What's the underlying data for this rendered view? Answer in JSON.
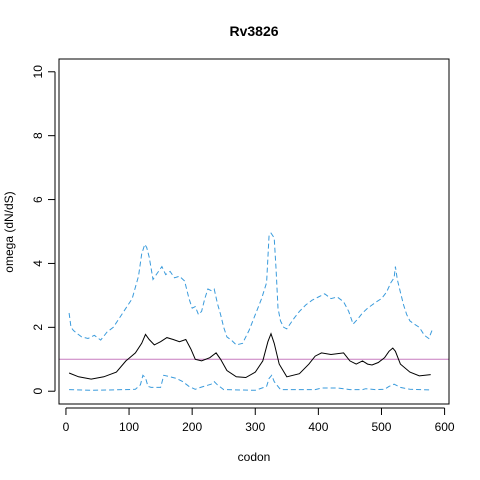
{
  "chart_data": {
    "type": "line",
    "title": "Rv3826",
    "xlabel": "codon",
    "ylabel": "omega (dN/dS)",
    "xlim": [
      -11,
      607
    ],
    "ylim": [
      -0.4,
      10.4
    ],
    "x_ticks": [
      0,
      100,
      200,
      300,
      400,
      500,
      600
    ],
    "y_ticks": [
      0,
      2,
      4,
      6,
      8,
      10
    ],
    "grid": false,
    "reference_line": {
      "y": 1,
      "color": "#C77CBF"
    },
    "colors": {
      "estimate": "#000000",
      "ci": "#3A9BDC"
    },
    "series": [
      {
        "role": "estimate",
        "style": "solid",
        "x": [
          5,
          20,
          40,
          60,
          80,
          95,
          110,
          120,
          126,
          132,
          140,
          150,
          160,
          170,
          180,
          190,
          198,
          205,
          215,
          228,
          238,
          245,
          255,
          270,
          285,
          300,
          312,
          320,
          325,
          330,
          338,
          350,
          370,
          385,
          395,
          405,
          420,
          440,
          450,
          460,
          470,
          478,
          485,
          495,
          505,
          512,
          518,
          522,
          530,
          545,
          560,
          578
        ],
        "y": [
          0.57,
          0.45,
          0.38,
          0.45,
          0.6,
          0.95,
          1.2,
          1.5,
          1.78,
          1.62,
          1.45,
          1.55,
          1.68,
          1.62,
          1.55,
          1.62,
          1.32,
          1.0,
          0.95,
          1.05,
          1.2,
          1.0,
          0.65,
          0.45,
          0.43,
          0.6,
          0.95,
          1.55,
          1.8,
          1.5,
          0.85,
          0.45,
          0.55,
          0.85,
          1.1,
          1.2,
          1.15,
          1.2,
          0.95,
          0.85,
          0.95,
          0.85,
          0.82,
          0.9,
          1.05,
          1.25,
          1.35,
          1.25,
          0.85,
          0.6,
          0.48,
          0.52
        ]
      },
      {
        "role": "upper-ci",
        "style": "dashed",
        "x": [
          5,
          8,
          12,
          18,
          25,
          35,
          45,
          55,
          65,
          75,
          85,
          95,
          105,
          115,
          120,
          125,
          128,
          132,
          138,
          145,
          152,
          158,
          165,
          172,
          180,
          188,
          195,
          200,
          205,
          210,
          215,
          220,
          225,
          230,
          235,
          240,
          245,
          250,
          255,
          262,
          270,
          280,
          290,
          300,
          310,
          318,
          322,
          325,
          330,
          333,
          336,
          340,
          345,
          350,
          355,
          362,
          370,
          380,
          390,
          400,
          410,
          420,
          430,
          440,
          448,
          455,
          462,
          470,
          478,
          485,
          492,
          500,
          508,
          515,
          520,
          522,
          525,
          530,
          535,
          540,
          545,
          552,
          560,
          568,
          575,
          580
        ],
        "y": [
          2.45,
          2.0,
          1.9,
          1.8,
          1.7,
          1.65,
          1.75,
          1.6,
          1.85,
          2.0,
          2.3,
          2.6,
          2.9,
          3.6,
          4.3,
          4.6,
          4.5,
          4.2,
          3.5,
          3.7,
          3.9,
          3.65,
          3.75,
          3.55,
          3.6,
          3.45,
          2.9,
          2.6,
          2.65,
          2.4,
          2.5,
          2.9,
          3.2,
          3.15,
          3.2,
          2.75,
          2.4,
          2.0,
          1.7,
          1.6,
          1.45,
          1.5,
          1.9,
          2.4,
          2.9,
          3.4,
          4.9,
          4.95,
          4.8,
          3.8,
          2.6,
          2.2,
          2.0,
          1.95,
          2.1,
          2.3,
          2.5,
          2.7,
          2.85,
          2.95,
          3.05,
          2.9,
          2.95,
          2.8,
          2.5,
          2.1,
          2.25,
          2.45,
          2.6,
          2.7,
          2.8,
          2.9,
          3.1,
          3.4,
          3.55,
          3.9,
          3.5,
          3.1,
          2.7,
          2.4,
          2.2,
          2.1,
          2.0,
          1.75,
          1.65,
          1.9
        ]
      },
      {
        "role": "lower-ci",
        "style": "dashed",
        "x": [
          5,
          40,
          95,
          110,
          118,
          122,
          126,
          130,
          135,
          150,
          155,
          165,
          175,
          185,
          195,
          205,
          210,
          230,
          235,
          240,
          250,
          300,
          318,
          322,
          326,
          330,
          340,
          395,
          405,
          430,
          450,
          470,
          475,
          490,
          505,
          512,
          520,
          530,
          545,
          578
        ],
        "y": [
          0.05,
          0.03,
          0.05,
          0.06,
          0.2,
          0.5,
          0.42,
          0.15,
          0.12,
          0.12,
          0.5,
          0.45,
          0.4,
          0.3,
          0.15,
          0.06,
          0.1,
          0.22,
          0.3,
          0.2,
          0.05,
          0.03,
          0.15,
          0.4,
          0.5,
          0.3,
          0.05,
          0.05,
          0.1,
          0.1,
          0.05,
          0.05,
          0.08,
          0.05,
          0.06,
          0.15,
          0.22,
          0.12,
          0.06,
          0.04
        ]
      }
    ]
  }
}
